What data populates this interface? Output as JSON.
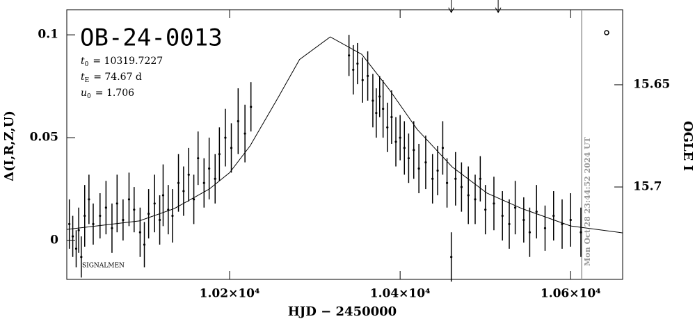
{
  "chart_data": {
    "type": "scatter",
    "title": "OB-24-0013",
    "parameters": [
      {
        "symbol": "t",
        "sub": "0",
        "text": "= 10319.7227"
      },
      {
        "symbol": "t",
        "sub": "E",
        "text": "= 74.67 d"
      },
      {
        "symbol": "u",
        "sub": "0",
        "text": "= 1.706"
      }
    ],
    "signature": "SIGNALMEN",
    "timestamp": "Mon Oct 28 23:44:52 2024 UT",
    "timestamp_x": 10613,
    "arrows_x": [
      10460,
      10515
    ],
    "x_label": "HJD − 2450000",
    "y_label": "Δ(I,R,Z,U)",
    "y2_label": "OGLE I",
    "xlim": [
      10009,
      10661
    ],
    "xticks": [
      {
        "value": 10200,
        "label": "1.02×10⁴"
      },
      {
        "value": 10400,
        "label": "1.04×10⁴"
      },
      {
        "value": 10600,
        "label": "1.06×10⁴"
      }
    ],
    "ylim": [
      -0.0189,
      0.1122
    ],
    "yticks": [
      0,
      0.05,
      0.1
    ],
    "y2lim": [
      15.7452,
      15.6133
    ],
    "y2ticks": [
      15.65,
      15.7
    ],
    "points": {
      "color": "#000000",
      "x": [
        10012,
        10016,
        10020,
        10023,
        10026,
        10030,
        10035,
        10040,
        10048,
        10055,
        10062,
        10068,
        10075,
        10082,
        10088,
        10095,
        10100,
        10105,
        10112,
        10118,
        10122,
        10128,
        10133,
        10140,
        10146,
        10152,
        10158,
        10163,
        10170,
        10176,
        10183,
        10188,
        10195,
        10202,
        10210,
        10218,
        10225,
        10340,
        10345,
        10350,
        10356,
        10362,
        10368,
        10372,
        10376,
        10380,
        10385,
        10390,
        10395,
        10400,
        10405,
        10410,
        10416,
        10422,
        10430,
        10438,
        10444,
        10450,
        10455,
        10460,
        10465,
        10472,
        10480,
        10488,
        10494,
        10500,
        10510,
        10520,
        10528,
        10535,
        10545,
        10552,
        10560,
        10570,
        10580,
        10590,
        10600,
        10612
      ],
      "values": [
        0.008,
        0.002,
        -0.004,
        0.005,
        -0.008,
        0.012,
        0.02,
        0.008,
        0.012,
        0.016,
        0.006,
        0.018,
        0.01,
        0.02,
        0.015,
        0.004,
        -0.002,
        0.013,
        0.018,
        0.01,
        0.022,
        0.015,
        0.012,
        0.028,
        0.024,
        0.032,
        0.02,
        0.04,
        0.028,
        0.035,
        0.03,
        0.042,
        0.05,
        0.045,
        0.058,
        0.052,
        0.065,
        0.09,
        0.083,
        0.086,
        0.078,
        0.08,
        0.068,
        0.062,
        0.07,
        0.064,
        0.055,
        0.06,
        0.048,
        0.05,
        0.045,
        0.04,
        0.044,
        0.035,
        0.038,
        0.03,
        0.034,
        0.045,
        0.028,
        -0.008,
        0.03,
        0.026,
        0.022,
        0.02,
        0.03,
        0.015,
        0.018,
        0.012,
        0.008,
        0.016,
        0.01,
        0.004,
        0.014,
        0.006,
        0.012,
        0.008,
        0.01,
        0.004
      ],
      "errors": [
        0.012,
        0.01,
        0.009,
        0.011,
        0.01,
        0.015,
        0.012,
        0.01,
        0.011,
        0.013,
        0.012,
        0.014,
        0.01,
        0.013,
        0.011,
        0.012,
        0.011,
        0.012,
        0.014,
        0.012,
        0.015,
        0.012,
        0.013,
        0.014,
        0.012,
        0.013,
        0.012,
        0.013,
        0.012,
        0.015,
        0.012,
        0.013,
        0.014,
        0.012,
        0.016,
        0.014,
        0.012,
        0.01,
        0.012,
        0.01,
        0.011,
        0.012,
        0.013,
        0.012,
        0.01,
        0.014,
        0.012,
        0.013,
        0.012,
        0.011,
        0.013,
        0.012,
        0.014,
        0.012,
        0.013,
        0.012,
        0.012,
        0.013,
        0.012,
        0.012,
        0.013,
        0.012,
        0.014,
        0.012,
        0.011,
        0.012,
        0.013,
        0.012,
        0.012,
        0.013,
        0.011,
        0.012,
        0.013,
        0.011,
        0.012,
        0.012,
        0.013,
        0.012
      ]
    },
    "model": {
      "color": "#000000",
      "x": [
        10009,
        10094,
        10135,
        10176,
        10200,
        10224,
        10257,
        10282,
        10318,
        10355,
        10388,
        10420,
        10461,
        10502,
        10543,
        10600,
        10661
      ],
      "values": [
        0.0054,
        0.0095,
        0.0155,
        0.025,
        0.033,
        0.046,
        0.0696,
        0.088,
        0.099,
        0.0905,
        0.073,
        0.054,
        0.0358,
        0.023,
        0.0155,
        0.0071,
        0.0037
      ]
    }
  }
}
